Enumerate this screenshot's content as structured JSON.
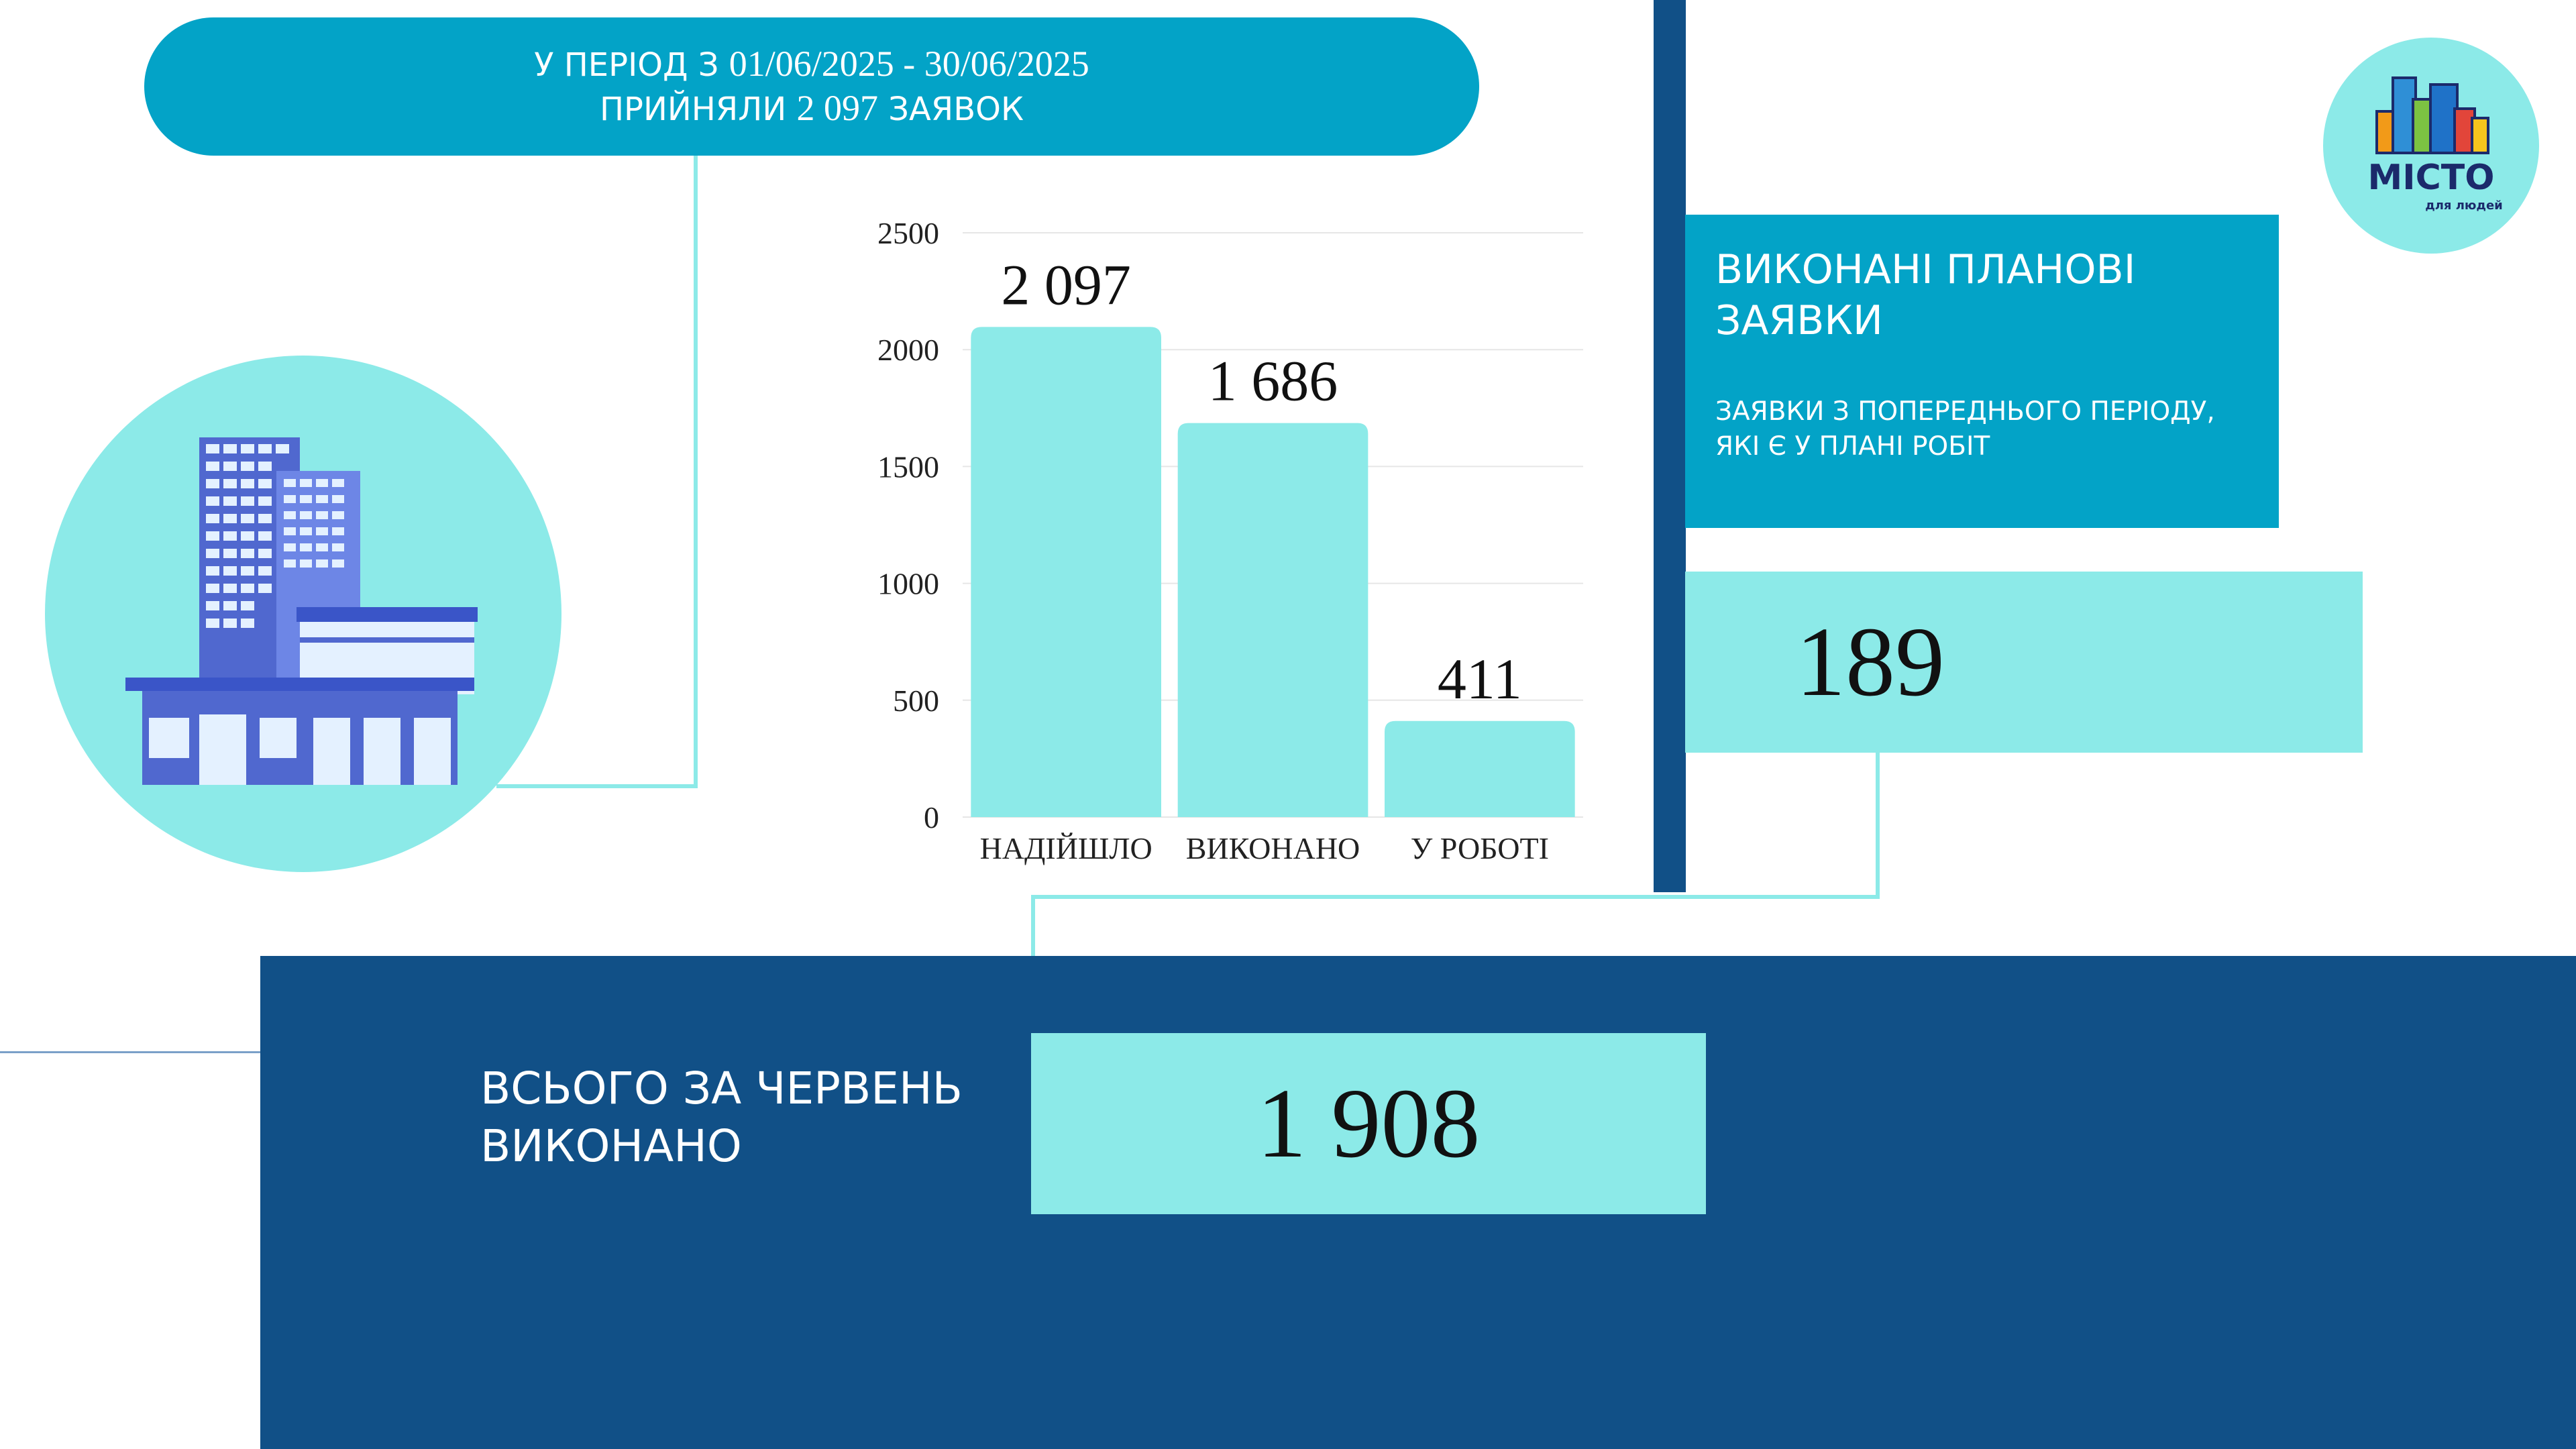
{
  "header": {
    "line1_prefix": "У ПЕРІОД З",
    "line1_dates": "01/06/2025 - 30/06/2025",
    "line2_prefix": "ПРИЙНЯЛИ",
    "line2_number": "2 097",
    "line2_suffix": "ЗАЯВОК"
  },
  "chart_data": {
    "type": "bar",
    "categories": [
      "НАДІЙШЛО",
      "ВИКОНАНО",
      "У РОБОТІ"
    ],
    "values": [
      2097,
      1686,
      411
    ],
    "data_labels": [
      "2 097",
      "1 686",
      "411"
    ],
    "yticks": [
      0,
      500,
      1000,
      1500,
      2000,
      2500
    ],
    "ylim": [
      0,
      2500
    ],
    "grid": true,
    "bar_color": "#8ceae8",
    "grid_color": "#e6e6e6"
  },
  "planned": {
    "title": "ВИКОНАНІ ПЛАНОВІ ЗАЯВКИ",
    "subtitle": "ЗАЯВКИ З ПОПЕРЕДНЬОГО ПЕРІОДУ, ЯКІ Є У ПЛАНІ РОБІТ",
    "value": "189"
  },
  "total": {
    "label": "ВСЬОГО ЗА ЧЕРВЕНЬ ВИКОНАНО",
    "value": "1 908"
  },
  "logo": {
    "name": "МІСТО",
    "tagline": "для людей"
  },
  "colors": {
    "accent": "#03a3c7",
    "light": "#8ceae8",
    "navy": "#115087"
  }
}
